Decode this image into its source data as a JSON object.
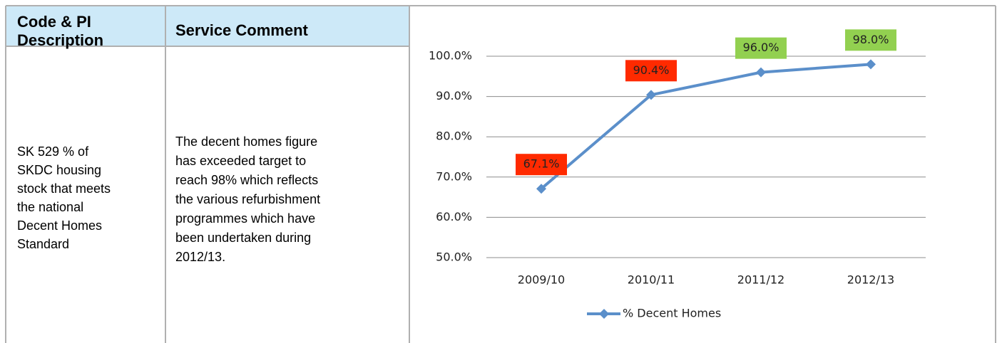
{
  "table": {
    "headers": [
      [
        "Code & PI",
        "Description"
      ],
      [
        "Service Comment"
      ]
    ],
    "rows": [
      [
        [
          "SK 529 % of",
          "SKDC housing",
          "stock that meets",
          "the national",
          "Decent Homes",
          "Standard"
        ],
        [
          "The decent homes figure",
          "has exceeded target to",
          "reach 98% which reflects",
          "the various refurbishment",
          "programmes which have",
          "been undertaken during",
          "2012/13."
        ]
      ]
    ]
  },
  "chart_data": {
    "type": "line",
    "categories": [
      "2009/10",
      "2010/11",
      "2011/12",
      "2012/13"
    ],
    "series": [
      {
        "name": "% Decent Homes",
        "color": "#5b8fca",
        "values": [
          67.1,
          90.4,
          96.0,
          98.0
        ],
        "value_labels": [
          "67.1%",
          "90.4%",
          "96.0%",
          "98.0%"
        ],
        "label_colors": [
          "#ff2a00",
          "#ff2a00",
          "#92d050",
          "#92d050"
        ]
      }
    ],
    "ylim": [
      50,
      100
    ],
    "yticks": [
      {
        "value": 50,
        "label": "50.0%"
      },
      {
        "value": 60,
        "label": "60.0%"
      },
      {
        "value": 70,
        "label": "70.0%"
      },
      {
        "value": 80,
        "label": "80.0%"
      },
      {
        "value": 90,
        "label": "90.0%"
      },
      {
        "value": 100,
        "label": "100.0%"
      }
    ],
    "grid": true,
    "legend": "bottom"
  }
}
